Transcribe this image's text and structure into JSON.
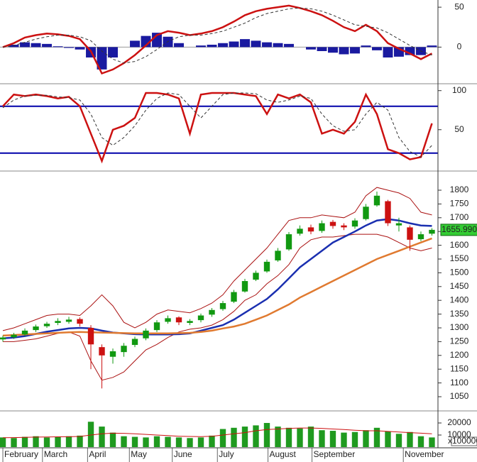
{
  "chart_data": [
    {
      "type": "macd",
      "ylim": [
        -45,
        59
      ],
      "yticks": [
        0,
        50
      ],
      "bars": {
        "color": "#1a1aa0",
        "values": [
          0,
          3,
          6,
          5,
          4,
          1,
          -1,
          -3,
          -13,
          -28,
          -13,
          0,
          8,
          14,
          18,
          13,
          5,
          0,
          2,
          3,
          5,
          7,
          10,
          8,
          6,
          5,
          4,
          0,
          -3,
          -5,
          -7,
          -9,
          -8,
          2,
          -4,
          -13,
          -12,
          -10,
          -10,
          2
        ]
      },
      "series": [
        {
          "color": "#cc1111",
          "dashed": false,
          "values": [
            0,
            5,
            12,
            15,
            17,
            16,
            14,
            10,
            -5,
            -33,
            -28,
            -20,
            -10,
            2,
            15,
            20,
            18,
            15,
            17,
            20,
            25,
            32,
            40,
            45,
            48,
            50,
            52,
            49,
            45,
            40,
            33,
            25,
            20,
            28,
            20,
            5,
            -2,
            -8,
            -15,
            -8
          ]
        },
        {
          "color": "#333333",
          "dashed": true,
          "values": [
            0,
            2,
            6,
            10,
            13,
            15,
            15,
            13,
            8,
            -5,
            -15,
            -20,
            -18,
            -12,
            -3,
            7,
            13,
            15,
            15,
            17,
            20,
            25,
            30,
            37,
            42,
            45,
            48,
            49,
            48,
            45,
            40,
            34,
            28,
            26,
            24,
            18,
            10,
            2,
            -5,
            -10
          ]
        }
      ]
    },
    {
      "type": "oscillator",
      "ylim": [
        -2,
        107
      ],
      "yticks": [
        50,
        100
      ],
      "hlines": [
        {
          "value": 80,
          "color": "#0000aa"
        },
        {
          "value": 20,
          "color": "#0000aa"
        }
      ],
      "series": [
        {
          "color": "#cc1111",
          "dashed": false,
          "values": [
            80,
            95,
            93,
            95,
            93,
            90,
            92,
            80,
            45,
            10,
            50,
            55,
            65,
            97,
            97,
            95,
            90,
            45,
            95,
            97,
            97,
            97,
            95,
            93,
            70,
            95,
            90,
            95,
            85,
            45,
            50,
            45,
            60,
            95,
            70,
            25,
            20,
            12,
            15,
            58
          ]
        },
        {
          "color": "#333333",
          "dashed": true,
          "values": [
            78,
            88,
            93,
            94,
            94,
            92,
            91,
            88,
            70,
            40,
            30,
            40,
            55,
            75,
            90,
            97,
            95,
            80,
            65,
            80,
            95,
            97,
            97,
            96,
            88,
            85,
            88,
            93,
            90,
            70,
            55,
            48,
            50,
            70,
            85,
            75,
            40,
            22,
            15,
            30
          ]
        }
      ]
    },
    {
      "type": "candlestick",
      "ylim": [
        1001,
        1867
      ],
      "xlim": [
        -0.26,
        39.55
      ],
      "yticks": [
        1050,
        1100,
        1150,
        1200,
        1250,
        1300,
        1350,
        1400,
        1450,
        1500,
        1550,
        1600,
        1650,
        1700,
        1750,
        1800
      ],
      "xticks": [
        {
          "value": 0,
          "label": "February"
        },
        {
          "value": 3.6,
          "label": "March"
        },
        {
          "value": 7.7,
          "label": "April"
        },
        {
          "value": 11.5,
          "label": "May"
        },
        {
          "value": 15.4,
          "label": "June"
        },
        {
          "value": 19.5,
          "label": "July"
        },
        {
          "value": 24.1,
          "label": "August"
        },
        {
          "value": 28.1,
          "label": "September"
        },
        {
          "value": 36.4,
          "label": "November"
        }
      ],
      "up_color": "#119911",
      "down_color": "#cc1111",
      "open": [
        1258,
        1266,
        1276,
        1292,
        1306,
        1318,
        1322,
        1332,
        1300,
        1230,
        1195,
        1212,
        1238,
        1262,
        1292,
        1322,
        1338,
        1318,
        1328,
        1348,
        1368,
        1395,
        1432,
        1475,
        1505,
        1545,
        1585,
        1642,
        1665,
        1652,
        1685,
        1672,
        1668,
        1695,
        1745,
        1760,
        1672,
        1665,
        1622,
        1642
      ],
      "high": [
        1272,
        1282,
        1298,
        1312,
        1322,
        1335,
        1340,
        1338,
        1310,
        1240,
        1225,
        1245,
        1268,
        1298,
        1328,
        1345,
        1342,
        1332,
        1352,
        1372,
        1398,
        1438,
        1478,
        1508,
        1548,
        1590,
        1648,
        1672,
        1675,
        1690,
        1692,
        1680,
        1698,
        1750,
        1795,
        1765,
        1700,
        1672,
        1650,
        1662
      ],
      "low": [
        1250,
        1260,
        1270,
        1285,
        1300,
        1310,
        1315,
        1305,
        1150,
        1080,
        1170,
        1195,
        1230,
        1255,
        1285,
        1315,
        1310,
        1310,
        1320,
        1340,
        1362,
        1390,
        1428,
        1470,
        1500,
        1540,
        1580,
        1635,
        1640,
        1645,
        1660,
        1655,
        1660,
        1690,
        1740,
        1670,
        1650,
        1580,
        1615,
        1635
      ],
      "close": [
        1265,
        1275,
        1290,
        1305,
        1315,
        1325,
        1330,
        1315,
        1240,
        1200,
        1215,
        1235,
        1260,
        1290,
        1320,
        1335,
        1320,
        1325,
        1345,
        1365,
        1390,
        1430,
        1470,
        1500,
        1540,
        1580,
        1640,
        1660,
        1650,
        1680,
        1670,
        1665,
        1690,
        1740,
        1780,
        1680,
        1680,
        1620,
        1640,
        1655.99
      ],
      "series": [
        {
          "color": "#aa1111",
          "width": 1,
          "values": [
            1290,
            1300,
            1315,
            1330,
            1345,
            1350,
            1350,
            1345,
            1380,
            1420,
            1380,
            1320,
            1300,
            1320,
            1350,
            1365,
            1360,
            1355,
            1370,
            1390,
            1420,
            1470,
            1510,
            1550,
            1590,
            1640,
            1690,
            1700,
            1700,
            1710,
            1705,
            1700,
            1720,
            1780,
            1810,
            1800,
            1790,
            1770,
            1720,
            1710
          ]
        },
        {
          "color": "#aa1111",
          "width": 1,
          "values": [
            1250,
            1250,
            1255,
            1260,
            1270,
            1280,
            1285,
            1270,
            1180,
            1110,
            1120,
            1140,
            1180,
            1220,
            1240,
            1265,
            1285,
            1295,
            1300,
            1310,
            1330,
            1360,
            1400,
            1420,
            1460,
            1490,
            1530,
            1590,
            1620,
            1630,
            1630,
            1635,
            1640,
            1640,
            1640,
            1630,
            1610,
            1590,
            1580,
            1590
          ]
        },
        {
          "color": "#1a2fb0",
          "width": 2.5,
          "values": [
            1262,
            1265,
            1270,
            1278,
            1286,
            1292,
            1298,
            1300,
            1298,
            1290,
            1283,
            1280,
            1277,
            1276,
            1276,
            1276,
            1277,
            1280,
            1290,
            1300,
            1310,
            1330,
            1355,
            1380,
            1405,
            1440,
            1480,
            1520,
            1550,
            1580,
            1610,
            1630,
            1650,
            1672,
            1690,
            1695,
            1690,
            1680,
            1672,
            1670
          ]
        },
        {
          "color": "#e07a30",
          "width": 2.5,
          "values": [
            1272,
            1274,
            1276,
            1278,
            1280,
            1282,
            1284,
            1285,
            1284,
            1283,
            1282,
            1281,
            1280,
            1280,
            1280,
            1280,
            1281,
            1282,
            1285,
            1290,
            1298,
            1305,
            1315,
            1330,
            1345,
            1365,
            1385,
            1410,
            1430,
            1450,
            1470,
            1490,
            1510,
            1530,
            1550,
            1565,
            1580,
            1595,
            1610,
            1625
          ]
        }
      ],
      "last_price": {
        "value": 1655.99,
        "label": "1655.990"
      }
    },
    {
      "type": "bar",
      "ylim": [
        0,
        29400
      ],
      "yticks": [
        10000,
        20000
      ],
      "unit_label": "x100000",
      "color": "#1f9a1f",
      "values": [
        8000,
        7500,
        8500,
        9000,
        8000,
        8500,
        9000,
        9500,
        21000,
        17000,
        12000,
        9000,
        8500,
        8000,
        9000,
        8500,
        8000,
        7500,
        8000,
        9500,
        15000,
        16000,
        17000,
        18000,
        20000,
        17000,
        16000,
        15500,
        17000,
        14000,
        13500,
        12000,
        12500,
        14000,
        16000,
        13000,
        11000,
        12500,
        9000,
        8000
      ],
      "series": [
        {
          "color": "#cc1111",
          "width": 1,
          "values": [
            7800,
            7900,
            8100,
            8300,
            8400,
            8500,
            8600,
            8800,
            10000,
            11000,
            11500,
            11400,
            11000,
            10500,
            10000,
            9500,
            9000,
            8800,
            8700,
            9000,
            10000,
            11000,
            12000,
            13500,
            14500,
            15000,
            15500,
            15800,
            15800,
            15500,
            15000,
            14500,
            14000,
            13500,
            13500,
            13000,
            12500,
            12000,
            11500,
            11000
          ]
        }
      ]
    }
  ]
}
